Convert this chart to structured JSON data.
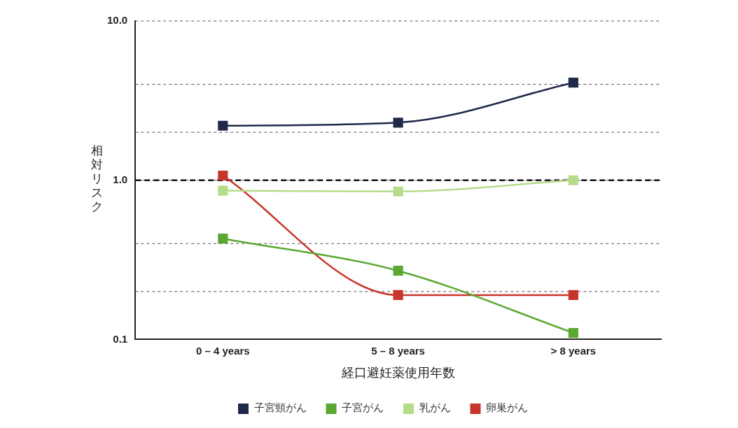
{
  "chart_data": {
    "type": "line",
    "xlabel": "経口避妊薬使用年数",
    "ylabel": "相対リスク",
    "categories": [
      "0 – 4 years",
      "5 – 8 years",
      "> 8 years"
    ],
    "series": [
      {
        "name": "子宮頸がん",
        "color": "#1f2a4a",
        "values": [
          2.2,
          2.3,
          4.1
        ]
      },
      {
        "name": "子宮がん",
        "color": "#5aa832",
        "values": [
          0.43,
          0.27,
          0.11
        ]
      },
      {
        "name": "乳がん",
        "color": "#b5dc8a",
        "values": [
          0.86,
          0.85,
          1.0
        ]
      },
      {
        "name": "卵巣がん",
        "color": "#c8352b",
        "values": [
          1.07,
          0.19,
          0.19
        ]
      }
    ],
    "log": true,
    "ylim": [
      0.1,
      10
    ],
    "yticks": [
      {
        "value": 0.1,
        "label": "0.1"
      },
      {
        "value": 0.2,
        "label": null
      },
      {
        "value": 0.4,
        "label": null
      },
      {
        "value": 1,
        "label": "1.0"
      },
      {
        "value": 2,
        "label": null
      },
      {
        "value": 4,
        "label": null
      },
      {
        "value": 10,
        "label": "10.0"
      }
    ],
    "grid": "y",
    "marker": "square",
    "line_style": "solid",
    "legend": "bottom",
    "ref_lines": [
      {
        "axis": "y",
        "value": 1,
        "color": "#111111",
        "line_style": "dashed"
      }
    ]
  }
}
